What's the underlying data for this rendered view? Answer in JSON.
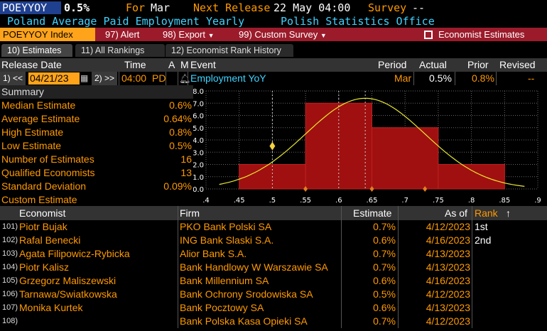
{
  "header": {
    "ticker": "POEYYOY",
    "value": "0.5%",
    "for_label": "For",
    "for_value": "Mar",
    "next_release_label": "Next Release",
    "next_release_value": "22 May 04:00",
    "survey_label": "Survey",
    "survey_value": "--",
    "description": "Poland Average Paid Employment Yearly",
    "source": "Polish Statistics Office"
  },
  "menu": {
    "index_label": "POEYYOY Index",
    "alert": "97) Alert",
    "export": "98) Export",
    "custom_survey": "99) Custom Survey",
    "economist_estimates": "Economist Estimates"
  },
  "tabs": [
    {
      "label": "10) Estimates"
    },
    {
      "label": "11) All Rankings"
    },
    {
      "label": "12) Economist Rank History"
    }
  ],
  "columns": {
    "release_date": "Release Date",
    "time": "Time",
    "a": "A",
    "m": "M",
    "event": "Event",
    "period": "Period",
    "actual": "Actual",
    "prior": "Prior",
    "revised": "Revised"
  },
  "row": {
    "prev_btn": "1) <<",
    "date": "04/21/23",
    "next_btn": "2) >>",
    "time": "04:00",
    "tz": "PD",
    "event": "Employment YoY",
    "period": "Mar",
    "actual": "0.5%",
    "prior": "0.8%",
    "revised": "--"
  },
  "summary": {
    "title": "Summary",
    "items": [
      {
        "label": "Median Estimate",
        "value": "0.6%"
      },
      {
        "label": "Average Estimate",
        "value": "0.64%"
      },
      {
        "label": "High Estimate",
        "value": "0.8%"
      },
      {
        "label": "Low Estimate",
        "value": "0.5%"
      },
      {
        "label": "Number of Estimates",
        "value": "16"
      },
      {
        "label": "Qualified Economists",
        "value": "13"
      },
      {
        "label": "Standard Deviation",
        "value": "0.09%"
      },
      {
        "label": "Custom Estimate",
        "value": ""
      }
    ]
  },
  "chart_data": {
    "type": "bar",
    "x_ticks": [
      ".4",
      ".45",
      ".5",
      ".55",
      ".6",
      ".65",
      ".7",
      ".75",
      ".8",
      ".85",
      ".9"
    ],
    "y_ticks": [
      "0.0",
      "1.0",
      "2.0",
      "3.0",
      "4.0",
      "5.0",
      "6.0",
      "7.0",
      "8.0"
    ],
    "xlim": [
      0.4,
      0.9
    ],
    "ylim": [
      0,
      8
    ],
    "bins": [
      {
        "from": 0.45,
        "to": 0.55,
        "count": 2
      },
      {
        "from": 0.55,
        "to": 0.65,
        "count": 7
      },
      {
        "from": 0.65,
        "to": 0.75,
        "count": 5
      },
      {
        "from": 0.75,
        "to": 0.85,
        "count": 2
      }
    ],
    "normal_curve": {
      "mean": 0.64,
      "std": 0.09,
      "peak": 7.4
    },
    "actual_marker": {
      "x": 0.5,
      "y": 3.5
    },
    "ref_lines": [
      0.5,
      0.64,
      0.6
    ],
    "colors": {
      "bar": "#a01010",
      "curve": "#e8e830",
      "marker": "#f5d040",
      "grid": "#666"
    }
  },
  "economists_header": {
    "economist": "Economist",
    "firm": "Firm",
    "estimate": "Estimate",
    "as_of": "As of",
    "rank": "Rank"
  },
  "economists": [
    {
      "idx": "101)",
      "name": "Piotr Bujak",
      "firm": "PKO Bank Polski SA",
      "estimate": "0.7%",
      "date": "4/12/2023",
      "rank": "1st"
    },
    {
      "idx": "102)",
      "name": "Rafal Benecki",
      "firm": "ING Bank Slaski S.A.",
      "estimate": "0.6%",
      "date": "4/16/2023",
      "rank": "2nd"
    },
    {
      "idx": "103)",
      "name": "Agata Filipowicz-Rybicka",
      "firm": "Alior Bank S.A.",
      "estimate": "0.7%",
      "date": "4/13/2023",
      "rank": ""
    },
    {
      "idx": "104)",
      "name": "Piotr Kalisz",
      "firm": "Bank Handlowy W Warszawie SA",
      "estimate": "0.7%",
      "date": "4/13/2023",
      "rank": ""
    },
    {
      "idx": "105)",
      "name": "Grzegorz Maliszewski",
      "firm": "Bank Millennium SA",
      "estimate": "0.6%",
      "date": "4/16/2023",
      "rank": ""
    },
    {
      "idx": "106)",
      "name": "Tarnawa/Swiatkowska",
      "firm": "Bank Ochrony Srodowiska SA",
      "estimate": "0.5%",
      "date": "4/12/2023",
      "rank": ""
    },
    {
      "idx": "107)",
      "name": "Monika Kurtek",
      "firm": "Bank Pocztowy SA",
      "estimate": "0.6%",
      "date": "4/13/2023",
      "rank": ""
    },
    {
      "idx": "108)",
      "name": "",
      "firm": "Bank Polska Kasa Opieki SA",
      "estimate": "0.7%",
      "date": "4/12/2023",
      "rank": ""
    }
  ]
}
